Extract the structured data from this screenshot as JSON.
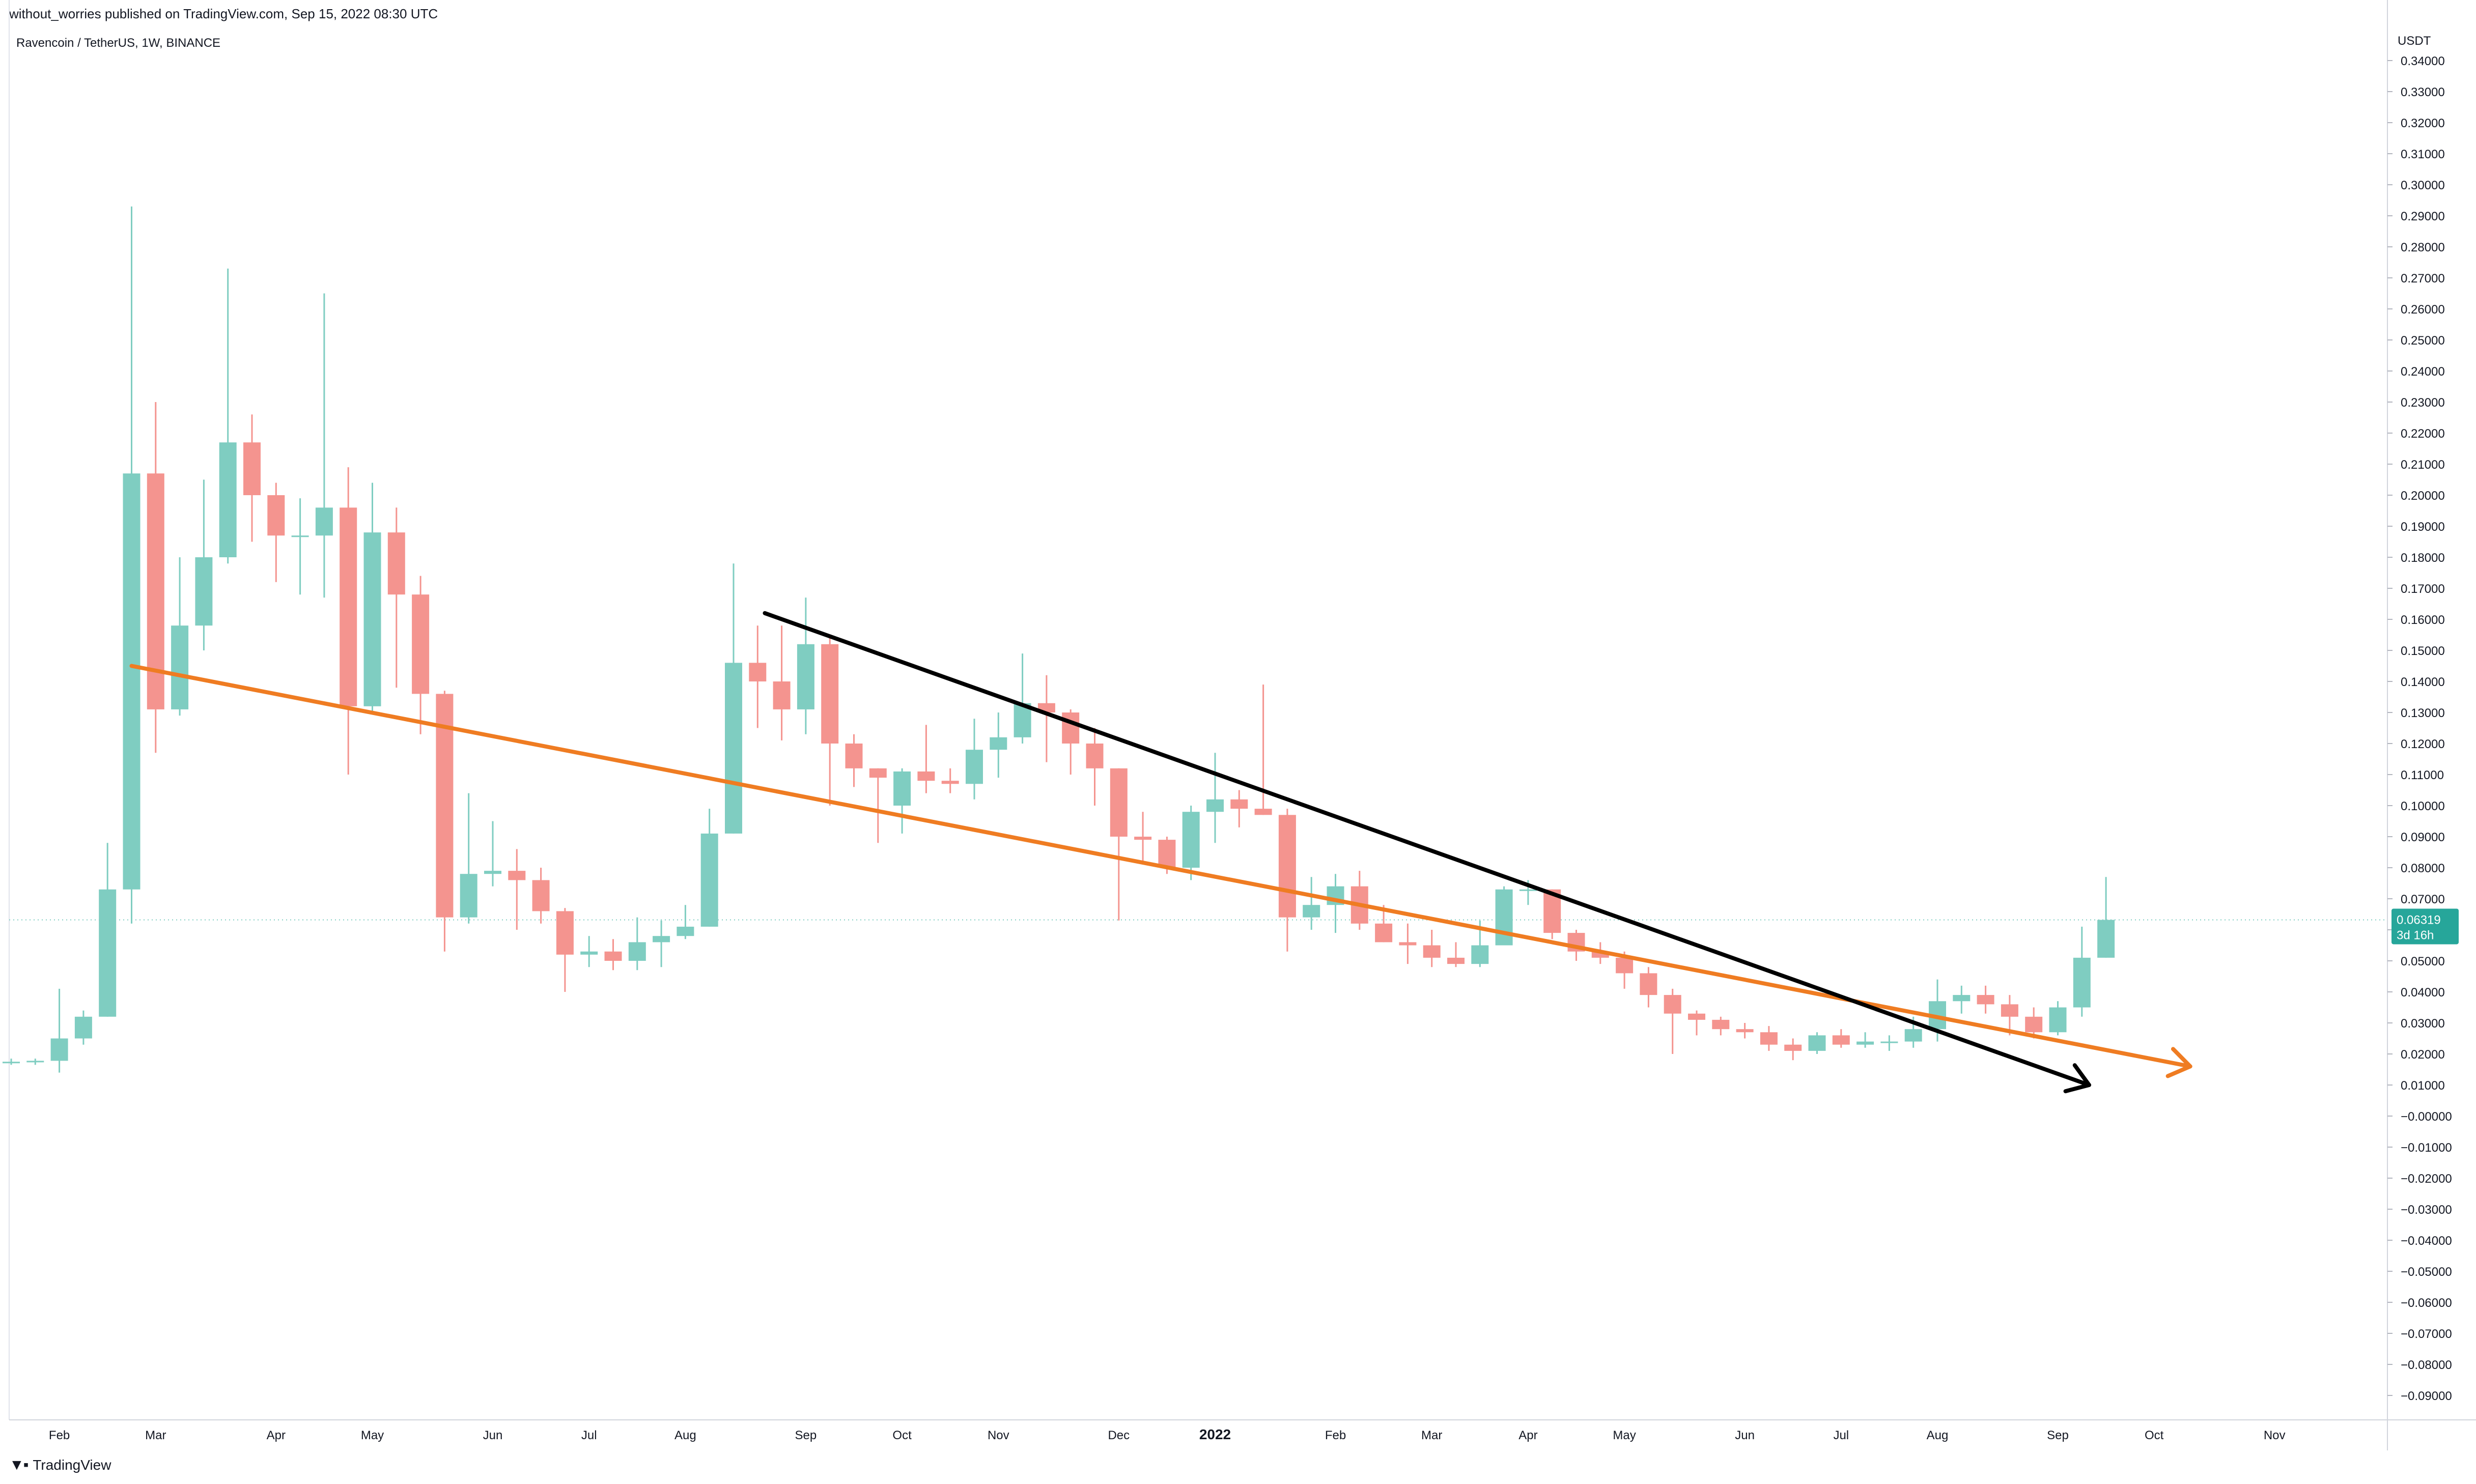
{
  "publish_line": "without_worries published on TradingView.com, Sep 15, 2022 08:30 UTC",
  "brand": "TradingView",
  "colors": {
    "up": "#7fcdc1",
    "down": "#f4948f",
    "trend_orange": "#ef7c22",
    "trend_black": "#000000",
    "axis_text": "#131722",
    "price_tag_bg": "#26a69a"
  },
  "chart_data": {
    "type": "candlestick",
    "title": "Ravencoin / TetherUS, 1W, BINANCE",
    "y_axis_label": "USDT",
    "ylim": [
      -0.095,
      0.345
    ],
    "y_ticks": [
      "0.34000",
      "0.33000",
      "0.32000",
      "0.31000",
      "0.30000",
      "0.29000",
      "0.28000",
      "0.27000",
      "0.26000",
      "0.25000",
      "0.24000",
      "0.23000",
      "0.22000",
      "0.21000",
      "0.20000",
      "0.19000",
      "0.18000",
      "0.17000",
      "0.16000",
      "0.15000",
      "0.14000",
      "0.13000",
      "0.12000",
      "0.11000",
      "0.10000",
      "0.09000",
      "0.08000",
      "0.07000",
      "0.06000",
      "0.05000",
      "0.04000",
      "0.03000",
      "0.02000",
      "0.01000",
      "−0.00000",
      "−0.01000",
      "−0.02000",
      "−0.03000",
      "−0.04000",
      "−0.05000",
      "−0.06000",
      "−0.07000",
      "−0.08000",
      "−0.09000"
    ],
    "x_ticks": [
      {
        "label": "Feb",
        "week": 2
      },
      {
        "label": "Mar",
        "week": 6
      },
      {
        "label": "Apr",
        "week": 11
      },
      {
        "label": "May",
        "week": 15
      },
      {
        "label": "Jun",
        "week": 20
      },
      {
        "label": "Jul",
        "week": 24
      },
      {
        "label": "Aug",
        "week": 28
      },
      {
        "label": "Sep",
        "week": 33
      },
      {
        "label": "Oct",
        "week": 37
      },
      {
        "label": "Nov",
        "week": 41
      },
      {
        "label": "Dec",
        "week": 46
      },
      {
        "label": "2022",
        "week": 50,
        "bold": true
      },
      {
        "label": "Feb",
        "week": 55
      },
      {
        "label": "Mar",
        "week": 59
      },
      {
        "label": "Apr",
        "week": 63
      },
      {
        "label": "May",
        "week": 67
      },
      {
        "label": "Jun",
        "week": 72
      },
      {
        "label": "Jul",
        "week": 76
      },
      {
        "label": "Aug",
        "week": 80
      },
      {
        "label": "Sep",
        "week": 85
      },
      {
        "label": "Oct",
        "week": 89
      },
      {
        "label": "Nov",
        "week": 94
      }
    ],
    "candles": [
      [
        0.0175,
        0.0185,
        0.0165,
        0.0175
      ],
      [
        0.0175,
        0.0185,
        0.0165,
        0.0178
      ],
      [
        0.0178,
        0.041,
        0.014,
        0.025
      ],
      [
        0.025,
        0.034,
        0.023,
        0.032
      ],
      [
        0.032,
        0.088,
        0.032,
        0.073
      ],
      [
        0.073,
        0.293,
        0.062,
        0.207
      ],
      [
        0.207,
        0.23,
        0.117,
        0.131
      ],
      [
        0.131,
        0.18,
        0.129,
        0.158
      ],
      [
        0.158,
        0.205,
        0.15,
        0.18
      ],
      [
        0.18,
        0.273,
        0.178,
        0.217
      ],
      [
        0.217,
        0.226,
        0.185,
        0.2
      ],
      [
        0.2,
        0.204,
        0.172,
        0.187
      ],
      [
        0.187,
        0.199,
        0.168,
        0.187
      ],
      [
        0.187,
        0.265,
        0.167,
        0.196
      ],
      [
        0.196,
        0.209,
        0.11,
        0.132
      ],
      [
        0.132,
        0.204,
        0.13,
        0.188
      ],
      [
        0.188,
        0.196,
        0.138,
        0.168
      ],
      [
        0.168,
        0.174,
        0.123,
        0.136
      ],
      [
        0.136,
        0.137,
        0.053,
        0.064
      ],
      [
        0.064,
        0.104,
        0.062,
        0.078
      ],
      [
        0.078,
        0.095,
        0.074,
        0.079
      ],
      [
        0.079,
        0.086,
        0.06,
        0.076
      ],
      [
        0.076,
        0.08,
        0.062,
        0.066
      ],
      [
        0.066,
        0.067,
        0.04,
        0.052
      ],
      [
        0.052,
        0.058,
        0.048,
        0.053
      ],
      [
        0.053,
        0.057,
        0.047,
        0.05
      ],
      [
        0.05,
        0.064,
        0.047,
        0.056
      ],
      [
        0.056,
        0.063,
        0.048,
        0.058
      ],
      [
        0.058,
        0.068,
        0.057,
        0.061
      ],
      [
        0.061,
        0.099,
        0.061,
        0.091
      ],
      [
        0.091,
        0.178,
        0.091,
        0.146
      ],
      [
        0.146,
        0.158,
        0.125,
        0.14
      ],
      [
        0.14,
        0.158,
        0.121,
        0.131
      ],
      [
        0.131,
        0.167,
        0.123,
        0.152
      ],
      [
        0.152,
        0.155,
        0.1,
        0.12
      ],
      [
        0.12,
        0.123,
        0.106,
        0.112
      ],
      [
        0.112,
        0.112,
        0.088,
        0.109
      ],
      [
        0.1,
        0.112,
        0.091,
        0.111
      ],
      [
        0.111,
        0.126,
        0.104,
        0.108
      ],
      [
        0.108,
        0.112,
        0.104,
        0.107
      ],
      [
        0.107,
        0.128,
        0.102,
        0.118
      ],
      [
        0.118,
        0.13,
        0.109,
        0.122
      ],
      [
        0.122,
        0.149,
        0.12,
        0.133
      ],
      [
        0.133,
        0.142,
        0.114,
        0.13
      ],
      [
        0.13,
        0.131,
        0.11,
        0.12
      ],
      [
        0.12,
        0.125,
        0.1,
        0.112
      ],
      [
        0.112,
        0.112,
        0.063,
        0.09
      ],
      [
        0.09,
        0.098,
        0.081,
        0.089
      ],
      [
        0.089,
        0.09,
        0.078,
        0.08
      ],
      [
        0.08,
        0.1,
        0.076,
        0.098
      ],
      [
        0.098,
        0.117,
        0.088,
        0.102
      ],
      [
        0.102,
        0.105,
        0.093,
        0.099
      ],
      [
        0.099,
        0.139,
        0.097,
        0.097
      ],
      [
        0.097,
        0.099,
        0.053,
        0.064
      ],
      [
        0.064,
        0.077,
        0.06,
        0.068
      ],
      [
        0.068,
        0.078,
        0.059,
        0.074
      ],
      [
        0.074,
        0.079,
        0.06,
        0.062
      ],
      [
        0.062,
        0.068,
        0.056,
        0.056
      ],
      [
        0.056,
        0.062,
        0.049,
        0.055
      ],
      [
        0.055,
        0.06,
        0.048,
        0.051
      ],
      [
        0.051,
        0.056,
        0.048,
        0.049
      ],
      [
        0.049,
        0.063,
        0.048,
        0.055
      ],
      [
        0.055,
        0.074,
        0.055,
        0.073
      ],
      [
        0.073,
        0.076,
        0.068,
        0.073
      ],
      [
        0.073,
        0.073,
        0.057,
        0.059
      ],
      [
        0.059,
        0.06,
        0.05,
        0.053
      ],
      [
        0.053,
        0.056,
        0.049,
        0.051
      ],
      [
        0.051,
        0.053,
        0.041,
        0.046
      ],
      [
        0.046,
        0.048,
        0.035,
        0.039
      ],
      [
        0.039,
        0.041,
        0.02,
        0.033
      ],
      [
        0.033,
        0.034,
        0.026,
        0.031
      ],
      [
        0.031,
        0.032,
        0.026,
        0.028
      ],
      [
        0.028,
        0.03,
        0.025,
        0.027
      ],
      [
        0.027,
        0.029,
        0.021,
        0.023
      ],
      [
        0.023,
        0.025,
        0.018,
        0.021
      ],
      [
        0.021,
        0.027,
        0.02,
        0.026
      ],
      [
        0.026,
        0.028,
        0.022,
        0.023
      ],
      [
        0.023,
        0.027,
        0.022,
        0.024
      ],
      [
        0.024,
        0.026,
        0.021,
        0.024
      ],
      [
        0.024,
        0.032,
        0.022,
        0.028
      ],
      [
        0.028,
        0.044,
        0.024,
        0.037
      ],
      [
        0.037,
        0.042,
        0.033,
        0.039
      ],
      [
        0.039,
        0.042,
        0.033,
        0.036
      ],
      [
        0.036,
        0.039,
        0.026,
        0.032
      ],
      [
        0.032,
        0.035,
        0.025,
        0.027
      ],
      [
        0.027,
        0.037,
        0.026,
        0.035
      ],
      [
        0.035,
        0.061,
        0.032,
        0.051
      ],
      [
        0.051,
        0.077,
        0.051,
        0.0632
      ]
    ],
    "trendlines": [
      {
        "color": "orange",
        "start": [
          5,
          0.145
        ],
        "end": [
          90.5,
          0.016
        ],
        "arrow": true
      },
      {
        "color": "black",
        "start": [
          31.3,
          0.162
        ],
        "end": [
          86.3,
          0.01
        ],
        "arrow": true
      }
    ],
    "last_price": {
      "value": 0.0632,
      "label": "0.06319",
      "countdown": "3d 16h"
    }
  }
}
